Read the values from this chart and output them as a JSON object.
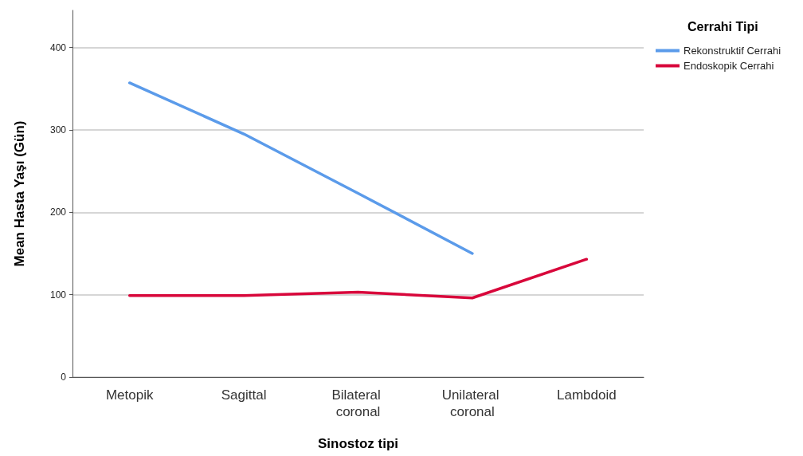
{
  "chart_data": {
    "type": "line",
    "xlabel": "Sinostoz tipi",
    "ylabel": "Mean Hasta Yaşı (Gün)",
    "legend_title": "Cerrahi Tipi",
    "categories": [
      "Metopik",
      "Sagittal",
      "Bilateral coronal",
      "Unilateral coronal",
      "Lambdoid"
    ],
    "series": [
      {
        "name": "Rekonstruktif Cerrahi",
        "color": "#5b9bea",
        "values": [
          357,
          295,
          223,
          150,
          null
        ]
      },
      {
        "name": "Endoskopik Cerrahi",
        "color": "#d8073b",
        "values": [
          99,
          99,
          103,
          96,
          143
        ]
      }
    ],
    "ylim": [
      0,
      445
    ],
    "yticks": [
      0,
      100,
      200,
      300,
      400
    ],
    "grid": "y",
    "legend": "top right",
    "marker": "none",
    "line_style": "solid"
  }
}
